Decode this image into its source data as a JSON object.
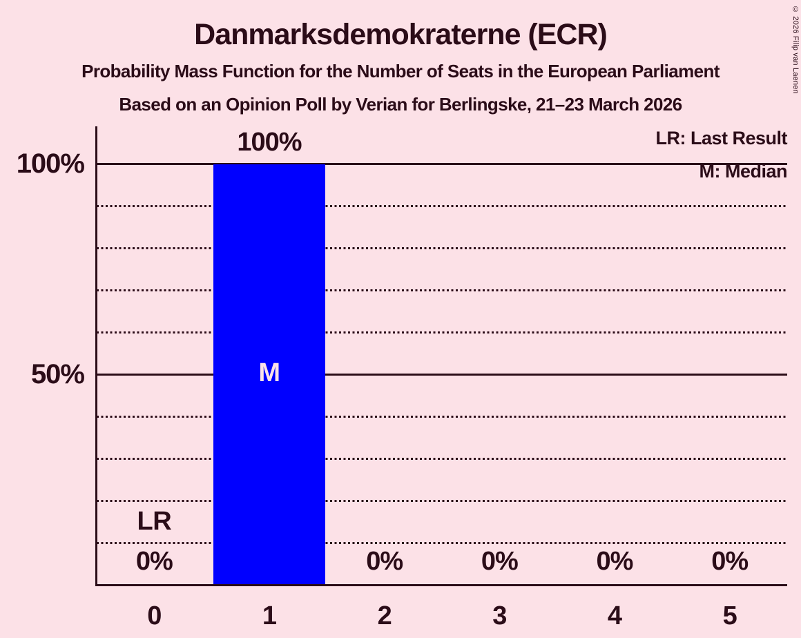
{
  "title": "Danmarksdemokraterne (ECR)",
  "subtitle": "Probability Mass Function for the Number of Seats in the European Parliament",
  "poll_info": "Based on an Opinion Poll by Verian for Berlingske, 21–23 March 2026",
  "copyright": "© 2026 Filip van Laenen",
  "legend": {
    "last_result": "LR: Last Result",
    "median": "M: Median"
  },
  "colors": {
    "background": "#FCE1E7",
    "text": "#2B0C18",
    "bar": "#0000FF",
    "bar_marker_text": "#FCE1E7"
  },
  "y_axis": {
    "tick_labels": [
      "100%",
      "50%"
    ],
    "tick_values": [
      100,
      50
    ]
  },
  "chart_data": {
    "type": "bar",
    "title": "Danmarksdemokraterne (ECR)",
    "categories": [
      "0",
      "1",
      "2",
      "3",
      "4",
      "5"
    ],
    "values": [
      0,
      100,
      0,
      0,
      0,
      0
    ],
    "value_labels": [
      "0%",
      "100%",
      "0%",
      "0%",
      "0%",
      "0%"
    ],
    "ylim": [
      0,
      100
    ],
    "grid": {
      "solid": [
        100,
        50
      ],
      "dotted": [
        90,
        80,
        70,
        60,
        40,
        30,
        20,
        10
      ]
    },
    "annotations": [
      {
        "marker": "LR",
        "meaning": "Last Result",
        "category": "0"
      },
      {
        "marker": "M",
        "meaning": "Median",
        "category": "1"
      }
    ]
  }
}
